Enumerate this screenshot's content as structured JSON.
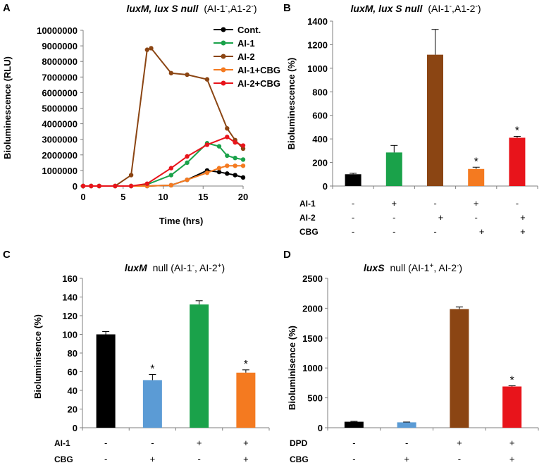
{
  "panels": [
    {
      "letter": "A"
    },
    {
      "letter": "B"
    },
    {
      "letter": "C"
    },
    {
      "letter": "D"
    }
  ],
  "chart_data": [
    {
      "type": "line",
      "title": {
        "italic": "luxM, lux S null",
        "plain": "(AI-1",
        "tail": ",A1-2",
        "end": ")"
      },
      "xlabel": "Time (hrs)",
      "ylabel": "Bioluminescence (RLU)",
      "xlim": [
        0,
        20
      ],
      "ylim": [
        0,
        10000000
      ],
      "xticks": [
        0,
        5,
        10,
        15,
        20
      ],
      "yticks": [
        0,
        1000000,
        2000000,
        3000000,
        4000000,
        5000000,
        6000000,
        7000000,
        8000000,
        9000000,
        10000000
      ],
      "ytick_labels": [
        "0",
        "1000000",
        "2000000",
        "3000000",
        "4000000",
        "5000000",
        "6000000",
        "7000000",
        "8000000",
        "9000000",
        "10000000"
      ],
      "series": [
        {
          "name": "Cont.",
          "color": "#000000",
          "x": [
            0,
            1,
            2,
            4,
            6,
            8,
            11,
            13,
            15.5,
            17,
            18,
            19,
            20
          ],
          "y": [
            0,
            0,
            0,
            0,
            0,
            0,
            50000,
            400000,
            1000000,
            900000,
            800000,
            700000,
            550000
          ]
        },
        {
          "name": "AI-1",
          "color": "#1aa24a",
          "x": [
            0,
            1,
            2,
            4,
            6,
            8,
            11,
            13,
            15.5,
            17,
            18,
            19,
            20
          ],
          "y": [
            0,
            0,
            0,
            0,
            0,
            100000,
            700000,
            1500000,
            2750000,
            2550000,
            1950000,
            1800000,
            1700000
          ]
        },
        {
          "name": "AI-2",
          "color": "#8b4513",
          "x": [
            0,
            1,
            2,
            4,
            6,
            8,
            8.5,
            11,
            13,
            15.5,
            18,
            19,
            20
          ],
          "y": [
            0,
            0,
            0,
            0,
            700000,
            8750000,
            8850000,
            7250000,
            7150000,
            6850000,
            3700000,
            2950000,
            2400000
          ]
        },
        {
          "name": "AI-1+CBG",
          "color": "#f47a20",
          "x": [
            0,
            1,
            2,
            4,
            6,
            8,
            11,
            13,
            15.5,
            17,
            18,
            19,
            20
          ],
          "y": [
            0,
            0,
            0,
            0,
            0,
            0,
            50000,
            400000,
            850000,
            1150000,
            1300000,
            1300000,
            1300000
          ]
        },
        {
          "name": "AI-2+CBG",
          "color": "#e8141b",
          "x": [
            0,
            1,
            2,
            4,
            6,
            8,
            11,
            13,
            15.5,
            18,
            19,
            20
          ],
          "y": [
            0,
            0,
            0,
            0,
            0,
            150000,
            1150000,
            1900000,
            2650000,
            3150000,
            2800000,
            2600000
          ]
        }
      ]
    },
    {
      "type": "bar",
      "title": {
        "italic": "luxM, lux S null",
        "plain": "(AI-1",
        "tail": ",A1-2",
        "end": ")"
      },
      "ylabel": "Bioluminescence (%)",
      "ylim": [
        0,
        1400
      ],
      "yticks": [
        0,
        200,
        400,
        600,
        800,
        1000,
        1200,
        1400
      ],
      "values": [
        100,
        285,
        1115,
        145,
        410
      ],
      "errors": [
        8,
        60,
        215,
        15,
        12
      ],
      "colors": [
        "#000000",
        "#1aa24a",
        "#8b4513",
        "#f47a20",
        "#e8141b"
      ],
      "significant": [
        false,
        false,
        false,
        true,
        true
      ],
      "star": "*",
      "conditions": [
        {
          "label": "AI-1",
          "signs": [
            "-",
            "+",
            "-",
            "+",
            "-"
          ]
        },
        {
          "label": "AI-2",
          "signs": [
            "-",
            "-",
            "+",
            "-",
            "+"
          ]
        },
        {
          "label": "CBG",
          "signs": [
            "-",
            "-",
            "-",
            "+",
            "+"
          ]
        }
      ]
    },
    {
      "type": "bar",
      "title": {
        "italic": "luxM",
        "plain": "null (AI-1",
        "tail": ", AI-2",
        "end": ")"
      },
      "ylabel": "Bioluminisence (%)",
      "ylim": [
        0,
        160
      ],
      "yticks": [
        0,
        20,
        40,
        60,
        80,
        100,
        120,
        140,
        160
      ],
      "values": [
        100,
        51,
        132,
        59
      ],
      "errors": [
        3,
        6,
        4,
        3
      ],
      "colors": [
        "#000000",
        "#5b9bd5",
        "#1aa24a",
        "#f47a20"
      ],
      "significant": [
        false,
        true,
        false,
        true
      ],
      "star": "*",
      "conditions": [
        {
          "label": "AI-1",
          "signs": [
            "-",
            "-",
            "+",
            "+"
          ]
        },
        {
          "label": "CBG",
          "signs": [
            "-",
            "+",
            "-",
            "+"
          ]
        }
      ]
    },
    {
      "type": "bar",
      "title": {
        "italic": "luxS",
        "plain": "null (AI-1",
        "tail": ", AI-2",
        "end": ")"
      },
      "ylabel": "Bioluminisence (%)",
      "ylim": [
        0,
        2500
      ],
      "yticks": [
        0,
        500,
        1000,
        1500,
        2000,
        2500
      ],
      "values": [
        100,
        90,
        1985,
        690
      ],
      "errors": [
        8,
        5,
        35,
        12
      ],
      "colors": [
        "#000000",
        "#5b9bd5",
        "#8b4513",
        "#e8141b"
      ],
      "significant": [
        false,
        false,
        false,
        true
      ],
      "star": "*",
      "conditions": [
        {
          "label": "DPD",
          "signs": [
            "-",
            "-",
            "+",
            "+"
          ]
        },
        {
          "label": "CBG",
          "signs": [
            "-",
            "+",
            "-",
            "+"
          ]
        }
      ]
    }
  ]
}
